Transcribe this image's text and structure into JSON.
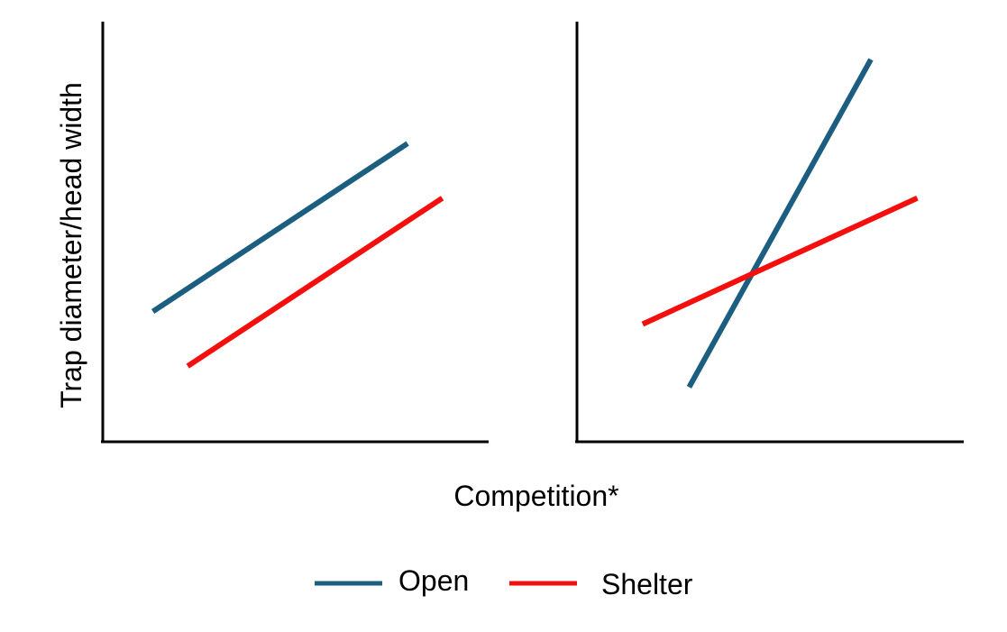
{
  "chart_data": [
    {
      "type": "line",
      "title": "",
      "xlabel": "Competition*",
      "ylabel": "Trap diameter/head width",
      "x_ticks_shown": false,
      "y_ticks_shown": false,
      "xlim": [
        0,
        100
      ],
      "ylim": [
        0,
        100
      ],
      "grid": false,
      "series": [
        {
          "name": "Open",
          "color": "#1b5e7f",
          "x": [
            13,
            79
          ],
          "y": [
            31,
            71
          ]
        },
        {
          "name": "Shelter",
          "color": "#f40f0f",
          "x": [
            22,
            88
          ],
          "y": [
            18,
            58
          ]
        }
      ]
    },
    {
      "type": "line",
      "title": "",
      "xlabel": "Competition*",
      "ylabel": "",
      "x_ticks_shown": false,
      "y_ticks_shown": false,
      "xlim": [
        0,
        100
      ],
      "ylim": [
        0,
        100
      ],
      "grid": false,
      "series": [
        {
          "name": "Open",
          "color": "#1b5e7f",
          "x": [
            29,
            76
          ],
          "y": [
            13,
            91
          ]
        },
        {
          "name": "Shelter",
          "color": "#f40f0f",
          "x": [
            17,
            88
          ],
          "y": [
            28,
            58
          ]
        }
      ]
    }
  ],
  "shared_xlabel": "Competition*",
  "legend": {
    "position": "bottom-center",
    "items": [
      {
        "label": "Open",
        "color": "#1b5e7f"
      },
      {
        "label": "Shelter",
        "color": "#f40f0f"
      }
    ]
  }
}
